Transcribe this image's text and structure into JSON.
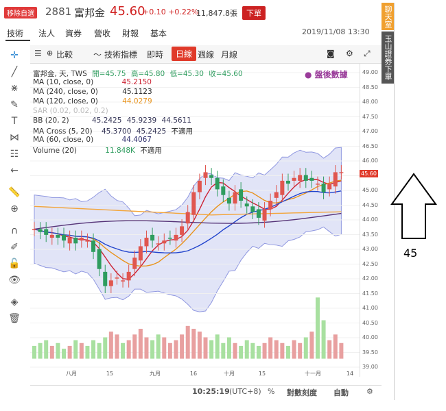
{
  "header": {
    "remove_fav": "移除自選",
    "code": "2881",
    "name": "富邦金",
    "price": "45.60",
    "change": "+0.10 +0.22%",
    "volume": "11,847.8張",
    "order": "下單"
  },
  "tabs": [
    "技術",
    "法人",
    "資券",
    "營收",
    "財報",
    "基本"
  ],
  "datetime": "2019/11/08 13:30",
  "toolbar": {
    "compare": "比較",
    "indicators": "技術指標",
    "realtime": "即時",
    "daily": "日線",
    "weekly": "週線",
    "monthly": "月線"
  },
  "legend": {
    "main": "富邦金, 天, TWS",
    "open": "開=45.75",
    "high": "高=45.80",
    "low": "低=45.30",
    "close": "收=45.60",
    "ma10": "MA (10, close, 0)",
    "ma10_v": "45.2150",
    "ma240": "MA (240, close, 0)",
    "ma240_v": "45.1123",
    "ma120": "MA (120, close, 0)",
    "ma120_v": "44.0279",
    "sar": "SAR (0.02, 0.02, 0.2)",
    "bb": "BB (20, 2)",
    "bb_v1": "45.2425",
    "bb_v2": "45.9239",
    "bb_v3": "44.5611",
    "macross": "MA Cross (5, 20)",
    "macross_v1": "45.3700",
    "macross_v2": "45.2425",
    "macross_v3": "不適用",
    "ma60": "MA (60, close, 0)",
    "ma60_v": "44.4067",
    "volume": "Volume (20)",
    "volume_v": "11.848K",
    "volume_v2": "不適用",
    "after_hours": "● 盤後數據"
  },
  "axis": {
    "y_ticks": [
      "49.00",
      "48.50",
      "48.00",
      "47.50",
      "47.00",
      "46.50",
      "46.00",
      "45.50",
      "45.00",
      "44.50",
      "44.00",
      "43.50",
      "43.00",
      "42.50",
      "42.00",
      "41.50",
      "41.00",
      "40.50",
      "40.00",
      "39.50",
      "39.00"
    ],
    "x_ticks": [
      "八月",
      "15",
      "九月",
      "16",
      "十月",
      "15",
      "十一月",
      "14"
    ],
    "price_tag": "45.60"
  },
  "bottom": {
    "time": "10:25:19",
    "tz": "(UTC+8)",
    "pct": "%",
    "log": "對數刻度",
    "auto": "自動"
  },
  "side": {
    "chat": "聊天室",
    "order": "玉山證券下單"
  },
  "annotation": {
    "number": "45"
  },
  "colors": {
    "up": "#e0564f",
    "down": "#2e9c5e",
    "accent": "#e03a2a",
    "band": "#c9cdf0"
  },
  "chart_data": {
    "type": "candlestick",
    "title": "富邦金, 天, TWS",
    "ylim": [
      38.8,
      49.1
    ],
    "x_categories": [
      "八月",
      "15",
      "九月",
      "16",
      "十月",
      "15",
      "十一月",
      "14"
    ],
    "close_series": [
      43.6,
      43.5,
      43.4,
      43.4,
      43.3,
      43.2,
      43.3,
      43.1,
      43.3,
      43.2,
      42.8,
      42.2,
      41.6,
      41.8,
      41.9,
      41.8,
      42.1,
      42.6,
      43.0,
      43.3,
      43.2,
      43.1,
      43.2,
      43.3,
      43.4,
      43.7,
      44.2,
      44.9,
      45.3,
      45.6,
      45.4,
      45.0,
      44.8,
      44.5,
      44.9,
      44.6,
      44.4,
      44.2,
      44.0,
      44.3,
      44.6,
      44.9,
      45.3,
      45.2,
      45.4,
      45.5,
      45.3,
      45.3,
      45.2,
      44.9,
      45.2,
      45.6,
      45.6
    ],
    "volume_series": [
      39.5,
      39.6,
      39.7,
      39.5,
      39.6,
      39.4,
      39.5,
      39.7,
      39.6,
      39.5,
      39.7,
      39.6,
      39.8,
      40.0,
      39.9,
      39.6,
      39.7,
      39.9,
      40.1,
      39.8,
      39.7,
      39.9,
      39.8,
      39.6,
      39.7,
      39.9,
      40.2,
      40.1,
      40.0,
      39.8,
      39.7,
      39.9,
      39.6,
      39.8,
      39.6,
      39.5,
      39.7,
      39.6,
      39.5,
      39.6,
      39.8,
      39.7,
      39.6,
      39.5,
      39.7,
      39.6,
      39.8,
      40.0,
      41.2,
      40.4,
      39.7,
      39.9,
      39.6
    ]
  }
}
